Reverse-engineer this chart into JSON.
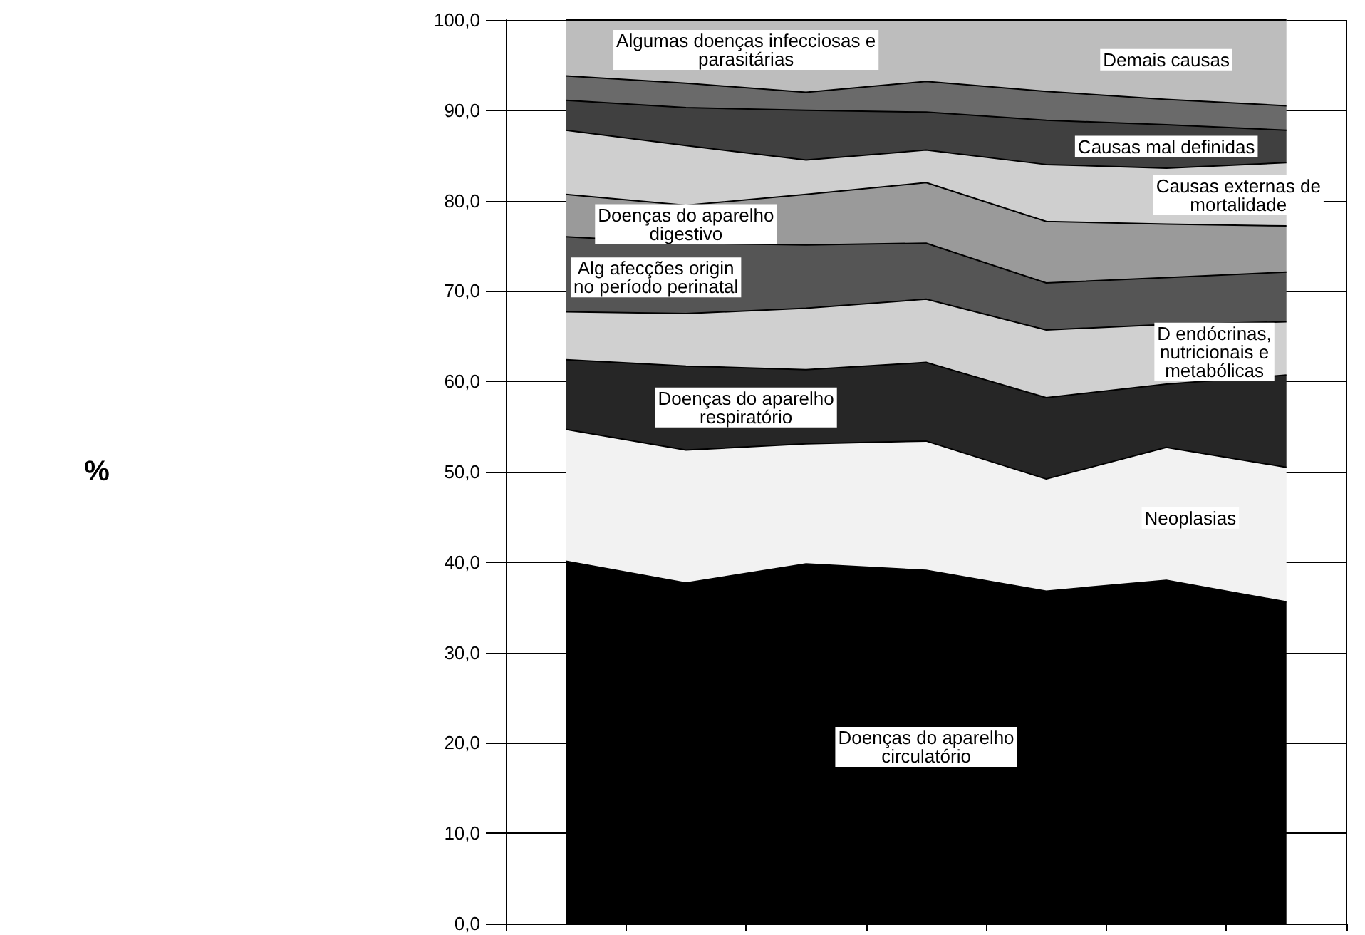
{
  "chart_data": {
    "type": "area",
    "stacked": true,
    "annotations": [
      "%"
    ],
    "categories": [
      null,
      null,
      null,
      null,
      null,
      null,
      null
    ],
    "ylim": [
      0,
      100
    ],
    "yticks": [
      {
        "value": 0,
        "label": "0,0"
      },
      {
        "value": 10,
        "label": "10,0"
      },
      {
        "value": 20,
        "label": "20,0"
      },
      {
        "value": 30,
        "label": "30,0"
      },
      {
        "value": 40,
        "label": "40,0"
      },
      {
        "value": 50,
        "label": "50,0"
      },
      {
        "value": 60,
        "label": "60,0"
      },
      {
        "value": 70,
        "label": "70,0"
      },
      {
        "value": 80,
        "label": "80,0"
      },
      {
        "value": 90,
        "label": "90,0"
      },
      {
        "value": 100,
        "label": "100,0"
      }
    ],
    "grid": "y",
    "series": [
      {
        "name": "Doenças do aparelho circulatório",
        "color": "#000000",
        "values": [
          40.1,
          37.7,
          39.8,
          39.1,
          36.8,
          38.0,
          35.6
        ]
      },
      {
        "name": "Neoplasias",
        "color": "#f2f2f2",
        "values": [
          14.6,
          14.7,
          13.3,
          14.3,
          12.4,
          14.7,
          14.9
        ]
      },
      {
        "name": "Doenças do aparelho respiratório",
        "color": "#262626",
        "values": [
          7.7,
          9.3,
          8.2,
          8.7,
          9.0,
          7.0,
          10.2
        ]
      },
      {
        "name": "D endócrinas, nutricionais e metabólicas",
        "color": "#d0d0d0",
        "values": [
          5.3,
          5.8,
          6.8,
          7.0,
          7.5,
          6.6,
          5.9
        ]
      },
      {
        "name": "Alg afecções origin no período perinatal",
        "color": "#555555",
        "values": [
          8.3,
          7.8,
          7.0,
          6.2,
          5.2,
          5.2,
          5.5
        ]
      },
      {
        "name": "Doenças do aparelho digestivo",
        "color": "#9a9a9a",
        "values": [
          4.7,
          4.2,
          5.6,
          6.7,
          6.8,
          5.9,
          5.1
        ]
      },
      {
        "name": "Causas externas de mortalidade",
        "color": "#cfcfcf",
        "values": [
          7.1,
          6.6,
          3.8,
          3.6,
          6.3,
          6.2,
          7.0
        ]
      },
      {
        "name": "Causas mal definidas",
        "color": "#404040",
        "values": [
          3.3,
          4.2,
          5.5,
          4.2,
          4.9,
          4.8,
          3.6
        ]
      },
      {
        "name": "Algumas doenças infecciosas e parasitárias",
        "color": "#6a6a6a",
        "values": [
          2.7,
          2.7,
          2.0,
          3.4,
          3.2,
          2.8,
          2.7
        ]
      },
      {
        "name": "Demais causas",
        "color": "#bdbdbd",
        "values": [
          6.2,
          7.0,
          8.0,
          6.8,
          7.9,
          8.8,
          9.5
        ]
      }
    ]
  }
}
